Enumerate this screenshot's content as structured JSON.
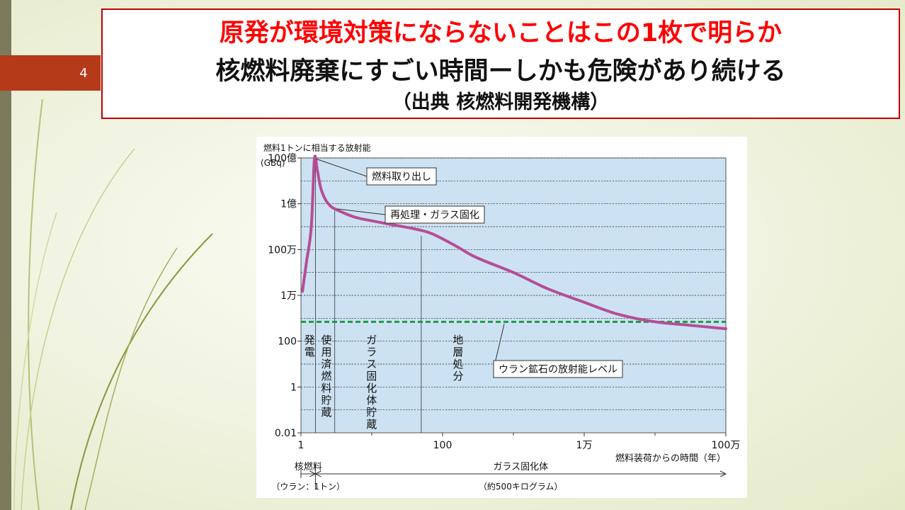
{
  "slide": {
    "number": "4",
    "title_line1": "原発が環境対策にならないことはこの1枚で明らか",
    "title_line2": "核燃料廃棄にすごい時間ーしかも危険があり続ける",
    "title_line3": "（出典 核燃料開発機構）"
  },
  "colors": {
    "accent_red": "#c00000",
    "curve": "#b64d96",
    "plot_bg": "#cce2f2",
    "uranium_line": "#1e9a46",
    "number_tab": "#b53a1a"
  },
  "chart_data": {
    "type": "line",
    "ylabel_line1": "燃料1トンに相当する放射能",
    "ylabel_line2": "(GBq)",
    "xlabel": "燃料装荷からの時間（年）",
    "x_scale": "log",
    "y_scale": "log",
    "xlim": [
      1,
      1000000
    ],
    "ylim": [
      0.01,
      10000000000
    ],
    "x_ticks": [
      {
        "value": 1,
        "label": "1"
      },
      {
        "value": 100,
        "label": "100"
      },
      {
        "value": 10000,
        "label": "1万"
      },
      {
        "value": 1000000,
        "label": "100万"
      }
    ],
    "y_ticks": [
      {
        "value": 0.01,
        "label": "0.01"
      },
      {
        "value": 1,
        "label": "1"
      },
      {
        "value": 100,
        "label": "100"
      },
      {
        "value": 10000,
        "label": "1万"
      },
      {
        "value": 1000000,
        "label": "100万"
      },
      {
        "value": 100000000,
        "label": "1億"
      },
      {
        "value": 10000000000,
        "label": "100億"
      }
    ],
    "grid": "horizontal-dashed",
    "series": [
      {
        "x": [
          1.05,
          1.2,
          1.4,
          1.55,
          1.7,
          1.9,
          2.2,
          2.6,
          3,
          4,
          6,
          10,
          20,
          40,
          70,
          150,
          300,
          1000,
          3000,
          10000,
          30000,
          100000,
          300000,
          1000000
        ],
        "y": [
          15000,
          300000,
          10000000,
          9000000000,
          3000000000,
          500000000,
          160000000,
          80000000,
          60000000,
          40000000,
          25000000,
          18000000,
          12000000,
          8000000,
          5000000,
          1500000,
          450000,
          100000,
          20000,
          5000,
          1500,
          700,
          500,
          350
        ]
      }
    ],
    "reference_line": {
      "label": "ウラン鉱石の放射能レベル",
      "y": 700
    },
    "phases": [
      {
        "label": "発電",
        "x_start": 1,
        "x_end": 1.6
      },
      {
        "label": "使用済燃料貯蔵",
        "x_start": 1.6,
        "x_end": 3
      },
      {
        "label": "ガラス固化体貯蔵",
        "x_start": 3,
        "x_end": 50
      },
      {
        "label": "地層処分",
        "x_start": 50,
        "x_end": 1000000
      }
    ],
    "annotations": [
      {
        "label": "燃料取り出し",
        "x": 1.55,
        "y": 9000000000
      },
      {
        "label": "再処理・ガラス固化",
        "x": 3,
        "y": 60000000
      }
    ],
    "materials": [
      {
        "name": "核燃料",
        "detail": "（ウラン：1トン）"
      },
      {
        "name": "ガラス固化体",
        "detail": "（約500キログラム）"
      }
    ]
  }
}
